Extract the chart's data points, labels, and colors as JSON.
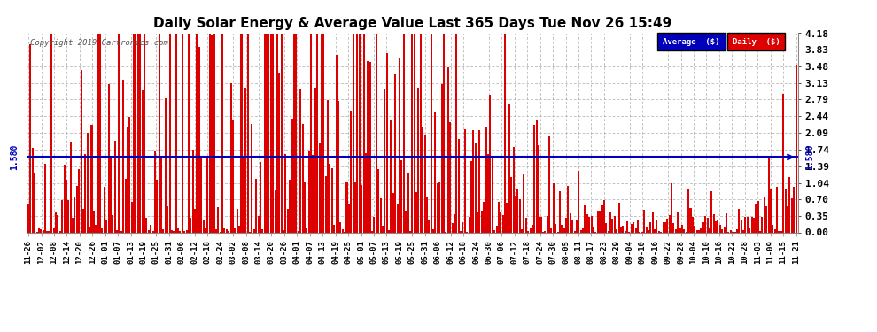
{
  "title": "Daily Solar Energy & Average Value Last 365 Days Tue Nov 26 15:49",
  "copyright": "Copyright 2019 Cartronics.com",
  "average_value": 1.58,
  "average_label": "1.580",
  "ylim": [
    0.0,
    4.18
  ],
  "yticks": [
    0.0,
    0.35,
    0.7,
    1.04,
    1.39,
    1.74,
    2.09,
    2.44,
    2.79,
    3.13,
    3.48,
    3.83,
    4.18
  ],
  "bar_color": "#dd0000",
  "avg_line_color": "#0000bb",
  "background_color": "#ffffff",
  "plot_bg_color": "#ffffff",
  "grid_color": "#aaaaaa",
  "text_color": "#000000",
  "title_color": "#000000",
  "legend_avg_bg": "#0000bb",
  "legend_daily_bg": "#dd0000",
  "x_labels": [
    "11-26",
    "12-02",
    "12-08",
    "12-14",
    "12-20",
    "12-26",
    "01-01",
    "01-07",
    "01-13",
    "01-19",
    "01-25",
    "01-31",
    "02-06",
    "02-12",
    "02-18",
    "02-24",
    "03-02",
    "03-08",
    "03-14",
    "03-20",
    "03-26",
    "04-01",
    "04-07",
    "04-13",
    "04-19",
    "04-25",
    "05-01",
    "05-07",
    "05-13",
    "05-19",
    "05-25",
    "05-31",
    "06-06",
    "06-12",
    "06-18",
    "06-24",
    "06-30",
    "07-06",
    "07-12",
    "07-18",
    "07-24",
    "07-30",
    "08-05",
    "08-11",
    "08-17",
    "08-23",
    "08-29",
    "09-04",
    "09-10",
    "09-16",
    "09-22",
    "09-28",
    "10-04",
    "10-10",
    "10-16",
    "10-22",
    "10-28",
    "11-03",
    "11-09",
    "11-15",
    "11-21"
  ],
  "num_bars": 365,
  "seed": 42
}
